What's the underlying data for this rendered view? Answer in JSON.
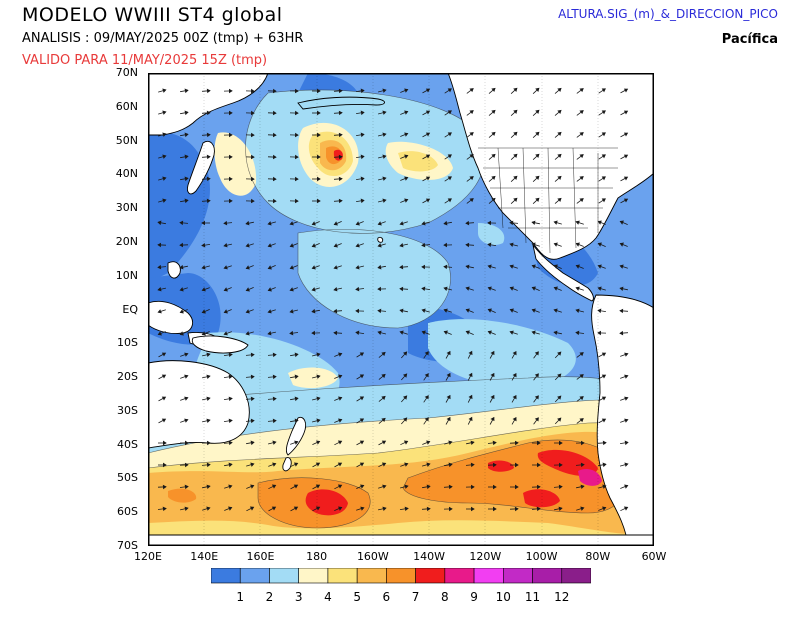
{
  "header": {
    "title": "MODELO WWIII ST4 global",
    "analysis": "ANALISIS : 09/MAY/2025 00Z  (tmp) + 63HR",
    "valid": "VALIDO PARA  11/MAY/2025 15Z  (tmp)",
    "variable": "ALTURA.SIG_(m)_&_DIRECCION_PICO",
    "region": "Pacífica"
  },
  "axes": {
    "lat_labels": [
      "70N",
      "60N",
      "50N",
      "40N",
      "30N",
      "20N",
      "10N",
      "EQ",
      "10S",
      "20S",
      "30S",
      "40S",
      "50S",
      "60S",
      "70S"
    ],
    "lon_labels": [
      "120E",
      "140E",
      "160E",
      "180",
      "160W",
      "140W",
      "120W",
      "100W",
      "80W",
      "60W"
    ]
  },
  "colorbar": {
    "labels": [
      "1",
      "2",
      "3",
      "4",
      "5",
      "6",
      "7",
      "8",
      "9",
      "10",
      "11",
      "12"
    ],
    "colors": [
      "#3b7be0",
      "#6aa2ee",
      "#a3dcf5",
      "#fff6c8",
      "#fbe27a",
      "#f9b84e",
      "#f7922a",
      "#f01d1d",
      "#e81a8a",
      "#f23ef2",
      "#c22ac6",
      "#a81ea8",
      "#8a1e8a"
    ]
  },
  "colors": {
    "land": "#ffffff",
    "land_outline": "#000000",
    "frame": "#000000",
    "arrow": "#1a1a1a"
  }
}
